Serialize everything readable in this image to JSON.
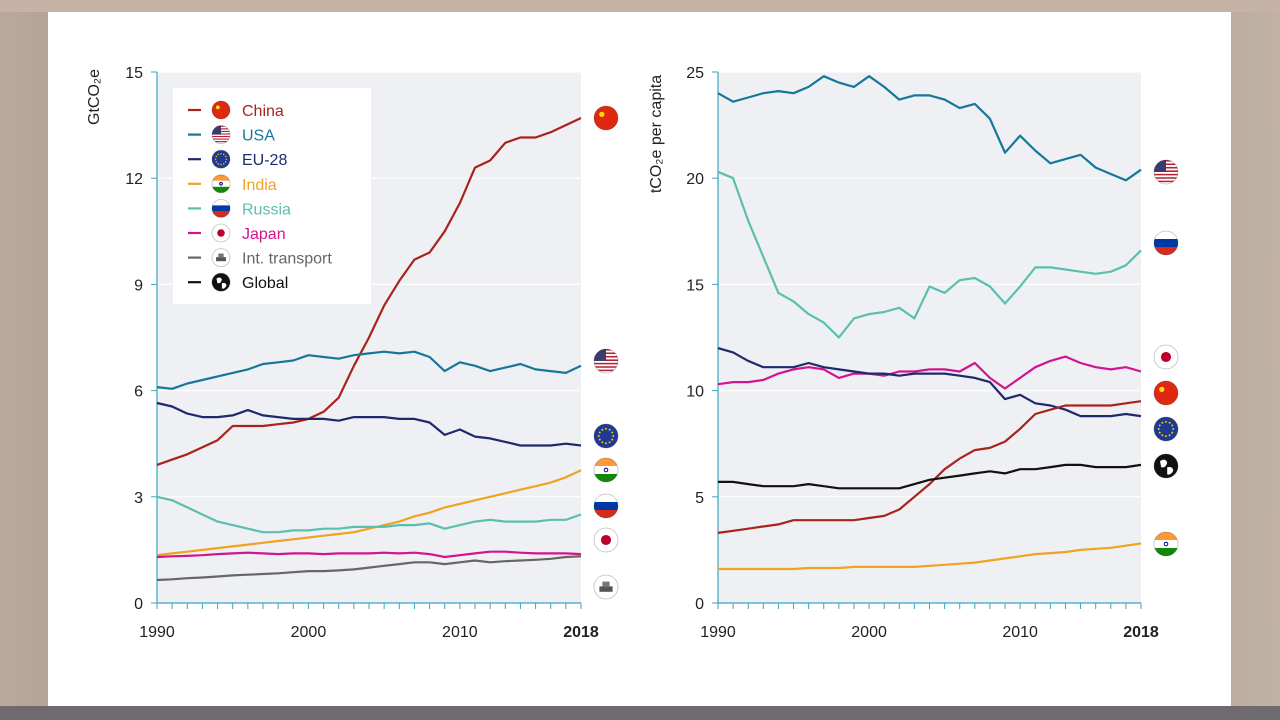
{
  "colors": {
    "China": "#a8231c",
    "USA": "#16779a",
    "EU-28": "#1d2a6b",
    "India": "#f0a223",
    "Russia": "#5bbfae",
    "Japan": "#d2148f",
    "Int. transport": "#666666",
    "Global": "#111111"
  },
  "chart_data": [
    {
      "type": "line",
      "ylabel": "GtCO₂e",
      "xlim": [
        1990,
        2018
      ],
      "ylim": [
        0,
        15
      ],
      "yticks": [
        0,
        3,
        6,
        9,
        12,
        15
      ],
      "xticks": [
        "1990",
        "2000",
        "2010",
        "2018"
      ],
      "x": [
        1990,
        1991,
        1992,
        1993,
        1994,
        1995,
        1996,
        1997,
        1998,
        1999,
        2000,
        2001,
        2002,
        2003,
        2004,
        2005,
        2006,
        2007,
        2008,
        2009,
        2010,
        2011,
        2012,
        2013,
        2014,
        2015,
        2016,
        2017,
        2018
      ],
      "legend": [
        "China",
        "USA",
        "EU-28",
        "India",
        "Russia",
        "Japan",
        "Int. transport",
        "Global"
      ],
      "series": [
        {
          "name": "China",
          "values": [
            3.9,
            4.05,
            4.2,
            4.4,
            4.6,
            5.0,
            5.0,
            5.0,
            5.05,
            5.1,
            5.2,
            5.4,
            5.8,
            6.7,
            7.5,
            8.4,
            9.1,
            9.7,
            9.9,
            10.5,
            11.3,
            12.3,
            12.5,
            13.0,
            13.15,
            13.15,
            13.3,
            13.5,
            13.7
          ]
        },
        {
          "name": "USA",
          "values": [
            6.1,
            6.05,
            6.2,
            6.3,
            6.4,
            6.5,
            6.6,
            6.75,
            6.8,
            6.85,
            7.0,
            6.95,
            6.9,
            7.0,
            7.05,
            7.1,
            7.05,
            7.1,
            6.95,
            6.55,
            6.8,
            6.7,
            6.55,
            6.65,
            6.75,
            6.6,
            6.55,
            6.5,
            6.7
          ]
        },
        {
          "name": "EU-28",
          "values": [
            5.65,
            5.55,
            5.35,
            5.25,
            5.25,
            5.3,
            5.45,
            5.3,
            5.25,
            5.2,
            5.2,
            5.2,
            5.15,
            5.25,
            5.25,
            5.25,
            5.2,
            5.2,
            5.1,
            4.75,
            4.9,
            4.7,
            4.65,
            4.55,
            4.45,
            4.45,
            4.45,
            4.5,
            4.45
          ]
        },
        {
          "name": "India",
          "values": [
            1.35,
            1.4,
            1.45,
            1.5,
            1.55,
            1.6,
            1.65,
            1.7,
            1.75,
            1.8,
            1.85,
            1.9,
            1.95,
            2.0,
            2.1,
            2.2,
            2.3,
            2.45,
            2.55,
            2.7,
            2.8,
            2.9,
            3.0,
            3.1,
            3.2,
            3.3,
            3.4,
            3.55,
            3.75
          ]
        },
        {
          "name": "Russia",
          "values": [
            3.0,
            2.9,
            2.7,
            2.5,
            2.3,
            2.2,
            2.1,
            2.0,
            2.0,
            2.05,
            2.05,
            2.1,
            2.1,
            2.15,
            2.15,
            2.15,
            2.2,
            2.2,
            2.25,
            2.1,
            2.2,
            2.3,
            2.35,
            2.3,
            2.3,
            2.3,
            2.35,
            2.35,
            2.5
          ]
        },
        {
          "name": "Japan",
          "values": [
            1.3,
            1.32,
            1.33,
            1.35,
            1.38,
            1.4,
            1.42,
            1.4,
            1.38,
            1.4,
            1.4,
            1.38,
            1.4,
            1.4,
            1.4,
            1.42,
            1.4,
            1.42,
            1.38,
            1.3,
            1.35,
            1.4,
            1.45,
            1.45,
            1.42,
            1.4,
            1.4,
            1.4,
            1.38
          ]
        },
        {
          "name": "Int. transport",
          "values": [
            0.65,
            0.67,
            0.7,
            0.72,
            0.75,
            0.78,
            0.8,
            0.82,
            0.84,
            0.87,
            0.9,
            0.9,
            0.92,
            0.95,
            1.0,
            1.05,
            1.1,
            1.15,
            1.15,
            1.1,
            1.15,
            1.2,
            1.15,
            1.18,
            1.2,
            1.22,
            1.25,
            1.3,
            1.32
          ]
        }
      ]
    },
    {
      "type": "line",
      "ylabel": "tCO₂e per capita",
      "xlim": [
        1990,
        2018
      ],
      "ylim": [
        0,
        25
      ],
      "yticks": [
        0,
        5,
        10,
        15,
        20,
        25
      ],
      "xticks": [
        "1990",
        "2000",
        "2010",
        "2018"
      ],
      "x": [
        1990,
        1991,
        1992,
        1993,
        1994,
        1995,
        1996,
        1997,
        1998,
        1999,
        2000,
        2001,
        2002,
        2003,
        2004,
        2005,
        2006,
        2007,
        2008,
        2009,
        2010,
        2011,
        2012,
        2013,
        2014,
        2015,
        2016,
        2017,
        2018
      ],
      "series": [
        {
          "name": "USA",
          "values": [
            24.0,
            23.6,
            23.8,
            24.0,
            24.1,
            24.0,
            24.3,
            24.8,
            24.5,
            24.3,
            24.8,
            24.3,
            23.7,
            23.9,
            23.9,
            23.7,
            23.3,
            23.5,
            22.8,
            21.2,
            22.0,
            21.3,
            20.7,
            20.9,
            21.1,
            20.5,
            20.2,
            19.9,
            20.4
          ]
        },
        {
          "name": "Russia",
          "values": [
            20.3,
            20.0,
            18.0,
            16.3,
            14.6,
            14.2,
            13.6,
            13.2,
            12.5,
            13.4,
            13.6,
            13.7,
            13.9,
            13.4,
            14.9,
            14.6,
            15.2,
            15.3,
            14.9,
            14.1,
            14.9,
            15.8,
            15.8,
            15.7,
            15.6,
            15.5,
            15.6,
            15.9,
            16.6
          ]
        },
        {
          "name": "Japan",
          "values": [
            10.3,
            10.4,
            10.4,
            10.5,
            10.8,
            11.0,
            11.1,
            11.0,
            10.6,
            10.8,
            10.8,
            10.7,
            10.9,
            10.9,
            11.0,
            11.0,
            10.9,
            11.3,
            10.6,
            10.1,
            10.6,
            11.1,
            11.4,
            11.6,
            11.3,
            11.1,
            11.0,
            11.1,
            10.9
          ]
        },
        {
          "name": "EU-28",
          "values": [
            12.0,
            11.8,
            11.4,
            11.1,
            11.1,
            11.1,
            11.3,
            11.1,
            11.0,
            10.9,
            10.8,
            10.8,
            10.7,
            10.8,
            10.8,
            10.8,
            10.7,
            10.6,
            10.4,
            9.6,
            9.8,
            9.4,
            9.3,
            9.1,
            8.8,
            8.8,
            8.8,
            8.9,
            8.8
          ]
        },
        {
          "name": "China",
          "values": [
            3.3,
            3.4,
            3.5,
            3.6,
            3.7,
            3.9,
            3.9,
            3.9,
            3.9,
            3.9,
            4.0,
            4.1,
            4.4,
            5.0,
            5.6,
            6.3,
            6.8,
            7.2,
            7.3,
            7.6,
            8.2,
            8.9,
            9.1,
            9.3,
            9.3,
            9.3,
            9.3,
            9.4,
            9.5
          ]
        },
        {
          "name": "Global",
          "values": [
            5.7,
            5.7,
            5.6,
            5.5,
            5.5,
            5.5,
            5.6,
            5.5,
            5.4,
            5.4,
            5.4,
            5.4,
            5.4,
            5.6,
            5.8,
            5.9,
            6.0,
            6.1,
            6.2,
            6.1,
            6.3,
            6.3,
            6.4,
            6.5,
            6.5,
            6.4,
            6.4,
            6.4,
            6.5
          ]
        },
        {
          "name": "India",
          "values": [
            1.6,
            1.6,
            1.6,
            1.6,
            1.6,
            1.6,
            1.65,
            1.65,
            1.65,
            1.7,
            1.7,
            1.7,
            1.7,
            1.7,
            1.75,
            1.8,
            1.85,
            1.9,
            2.0,
            2.1,
            2.2,
            2.3,
            2.35,
            2.4,
            2.5,
            2.55,
            2.6,
            2.7,
            2.8
          ]
        }
      ]
    }
  ]
}
